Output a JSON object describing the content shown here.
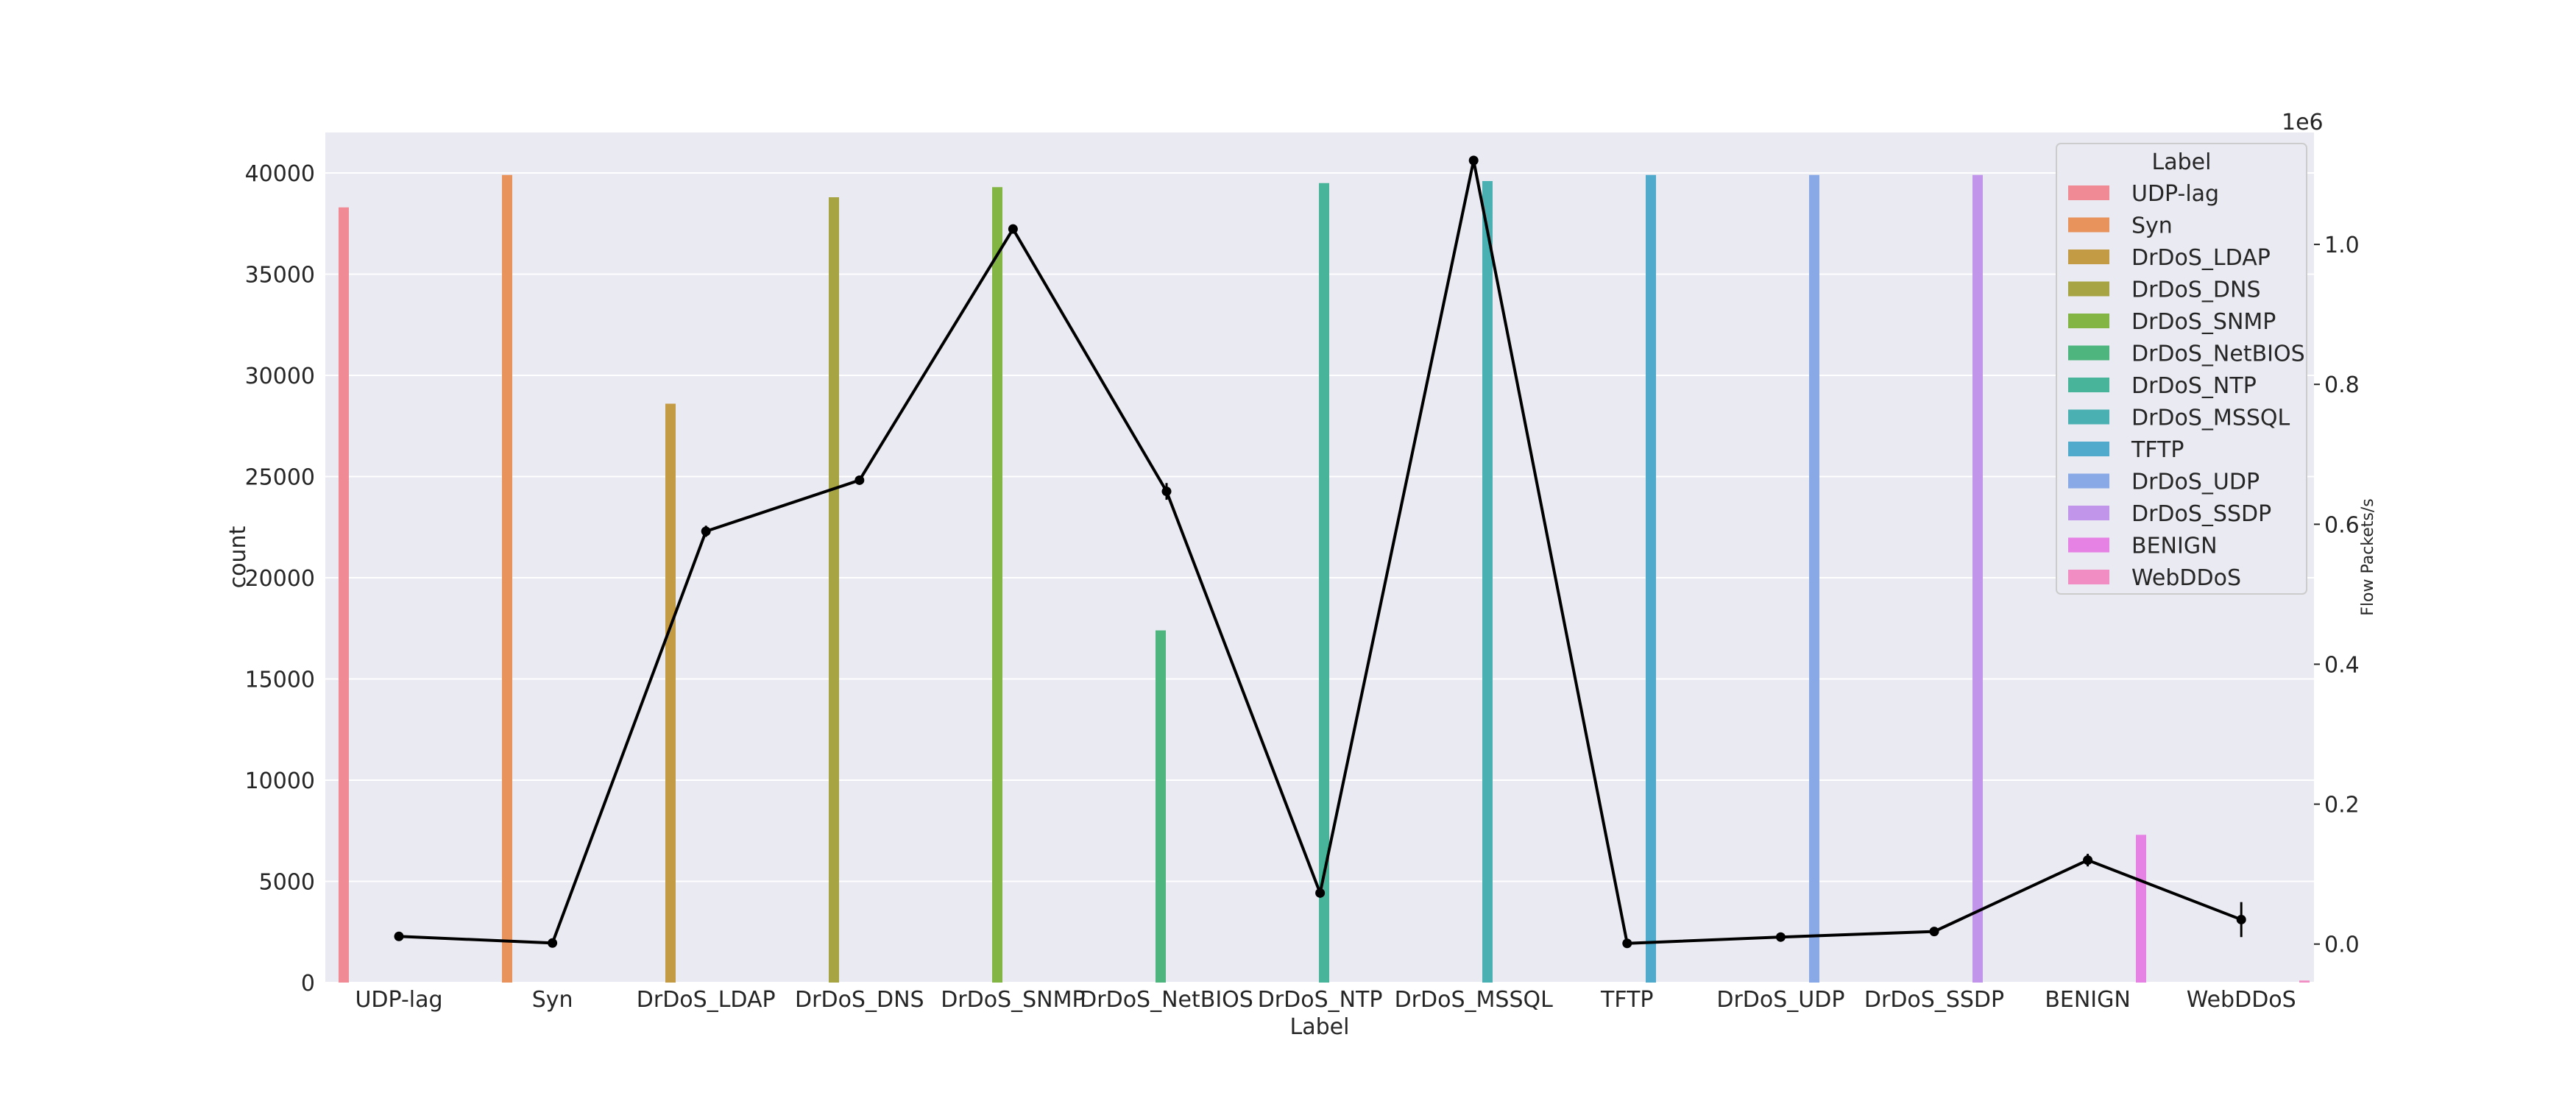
{
  "chart_data": {
    "type": "bar",
    "categories": [
      "UDP-lag",
      "Syn",
      "DrDoS_LDAP",
      "DrDoS_DNS",
      "DrDoS_SNMP",
      "DrDoS_NetBIOS",
      "DrDoS_NTP",
      "DrDoS_MSSQL",
      "TFTP",
      "DrDoS_UDP",
      "DrDoS_SSDP",
      "BENIGN",
      "WebDDoS"
    ],
    "colors": [
      "#f08a94",
      "#e8935b",
      "#c49b45",
      "#a6a443",
      "#83b544",
      "#4eb57e",
      "#48b59a",
      "#4bb0b1",
      "#50aacc",
      "#88a9e6",
      "#c195e9",
      "#e582e3",
      "#f18dc2"
    ],
    "count_values": [
      38300,
      39900,
      28600,
      38800,
      39300,
      17400,
      39500,
      39600,
      39900,
      39900,
      39900,
      7300,
      100
    ],
    "flow_packets_per_s": [
      11000,
      1500,
      590000,
      663000,
      1022000,
      647000,
      73000,
      1120000,
      1000,
      10000,
      18000,
      120000,
      35000
    ],
    "flow_packets_err": [
      3000,
      1000,
      8000,
      6000,
      4000,
      12000,
      6000,
      5000,
      1000,
      2000,
      2000,
      9000,
      25000
    ],
    "title": "",
    "xlabel": "Label",
    "ylabel": "count",
    "y2label": "Flow Packets/s",
    "y2_exponent": "1e6",
    "ylim": [
      0,
      42000
    ],
    "yticks": [
      0,
      5000,
      10000,
      15000,
      20000,
      25000,
      30000,
      35000,
      40000
    ],
    "y2lim": [
      -0.055,
      1.16
    ],
    "y2ticks": [
      0.0,
      0.2,
      0.4,
      0.6,
      0.8,
      1.0
    ],
    "y2tick_labels": [
      "0.0",
      "0.2",
      "0.4",
      "0.6",
      "0.8",
      "1.0"
    ],
    "legend_title": "Label",
    "legend_position": "top-right",
    "grid": true
  }
}
